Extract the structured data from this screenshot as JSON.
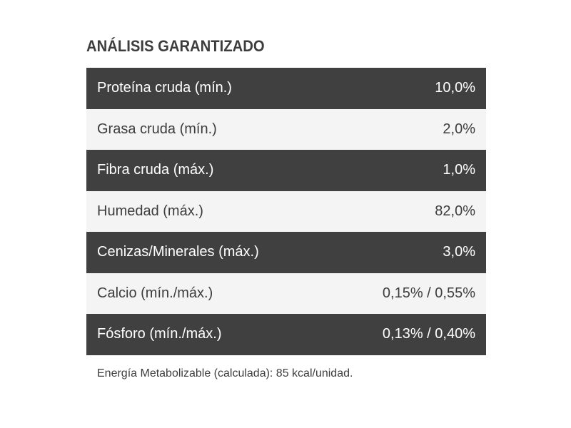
{
  "title": "ANÁLISIS GARANTIZADO",
  "rows": [
    {
      "label": "Proteína cruda (mín.)",
      "value": "10,0%"
    },
    {
      "label": "Grasa cruda (mín.)",
      "value": "2,0%"
    },
    {
      "label": "Fibra cruda (máx.)",
      "value": "1,0%"
    },
    {
      "label": "Humedad (máx.)",
      "value": "82,0%"
    },
    {
      "label": "Cenizas/Minerales (máx.)",
      "value": "3,0%"
    },
    {
      "label": "Calcio (mín./máx.)",
      "value": "0,15% / 0,55%"
    },
    {
      "label": "Fósforo (mín./máx.)",
      "value": "0,13% / 0,40%"
    }
  ],
  "footnote": "Energía Metabolizable (calculada): 85 kcal/unidad.",
  "colors": {
    "dark_row": "#404040",
    "light_row": "#f4f4f4",
    "text_dark": "#3d3d3d",
    "text_light": "#ffffff"
  }
}
